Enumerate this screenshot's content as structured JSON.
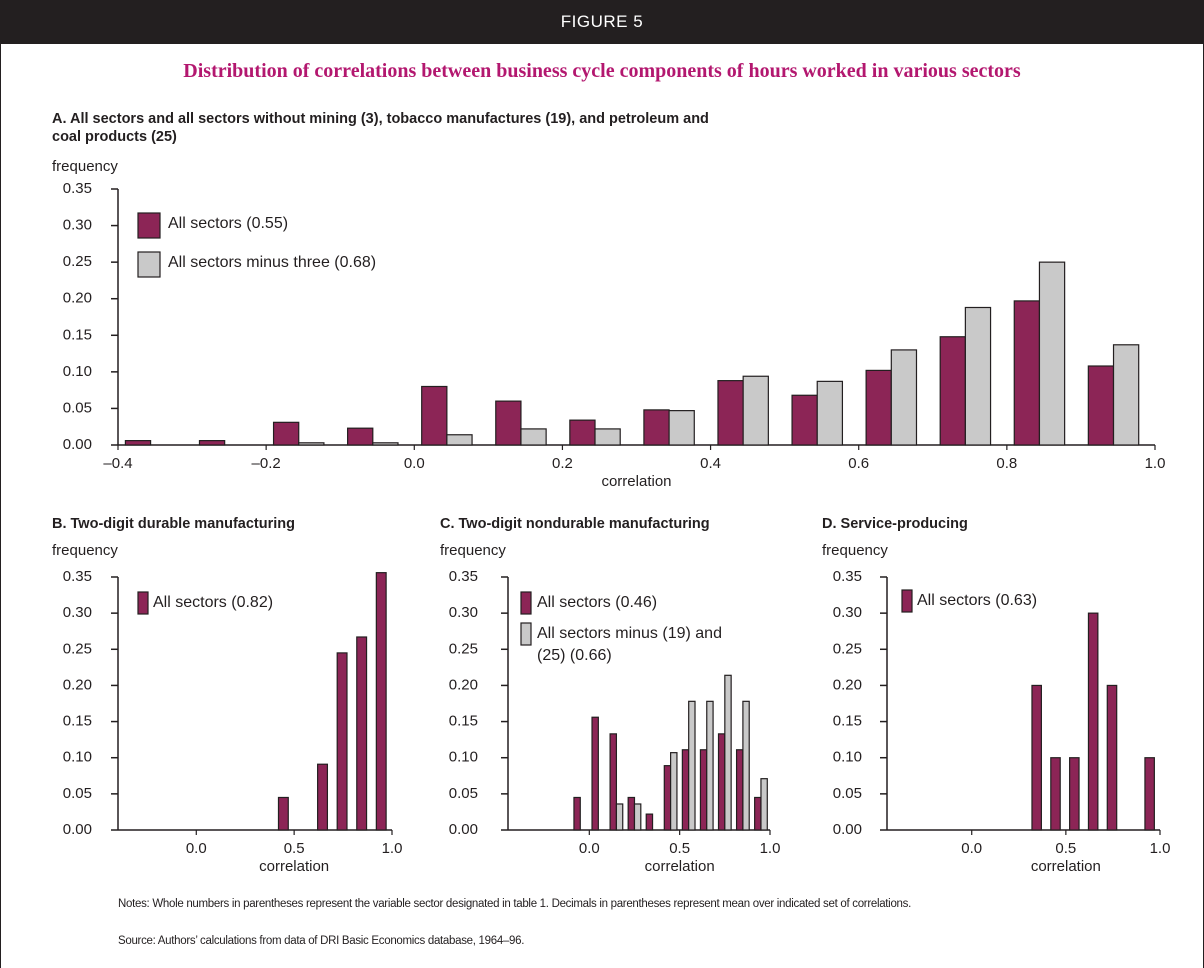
{
  "header": "FIGURE 5",
  "title": "Distribution of correlations between business cycle components of hours worked in various sectors",
  "chart_data": [
    {
      "type": "histogram",
      "title": "A. All sectors and all sectors without mining (3), tobacco manufactures (19), and petroleum and coal products (25)",
      "ylabel": "frequency",
      "xlabel": "correlation",
      "legend": "upper left",
      "bins": [
        -0.4,
        -0.3,
        -0.2,
        -0.1,
        0,
        0.1,
        0.2,
        0.3,
        0.4,
        0.5,
        0.6,
        0.7,
        0.8,
        0.9,
        1.0
      ],
      "series": [
        {
          "name": "All sectors (0.55)",
          "color": "#8c2556",
          "values": [
            0.006,
            0.006,
            0.031,
            0.023,
            0.08,
            0.06,
            0.034,
            0.048,
            0.088,
            0.068,
            0.102,
            0.148,
            0.197,
            0.108
          ]
        },
        {
          "name": "All sectors minus three (0.68)",
          "color": "#c9c9c9",
          "values": [
            0,
            0,
            0.003,
            0.003,
            0.014,
            0.022,
            0.022,
            0.047,
            0.094,
            0.087,
            0.13,
            0.188,
            0.25,
            0.137
          ]
        }
      ],
      "xlim": [
        -0.4,
        1.0
      ],
      "ylim": [
        0,
        0.35
      ],
      "xticks": [
        {
          "value": -0.4,
          "label": "–0.4"
        },
        {
          "value": -0.2,
          "label": "–0.2"
        },
        {
          "value": 0,
          "label": "0.0"
        },
        0.2,
        0.4,
        0.6,
        0.8,
        {
          "value": 1,
          "label": "1.0"
        }
      ],
      "yticks": [
        {
          "value": 0,
          "label": "0.00"
        },
        0.05,
        {
          "value": 0.1,
          "label": "0.10"
        },
        0.15,
        {
          "value": 0.2,
          "label": "0.20"
        },
        0.25,
        {
          "value": 0.3,
          "label": "0.30"
        },
        0.35
      ]
    },
    {
      "type": "histogram",
      "title": "B. Two-digit durable manufacturing",
      "ylabel": "frequency",
      "xlabel": "correlation",
      "legend": "upper left",
      "bins": [
        -0.4,
        -0.3,
        -0.2,
        -0.1,
        0,
        0.1,
        0.2,
        0.3,
        0.4,
        0.5,
        0.6,
        0.7,
        0.8,
        0.9,
        1.0
      ],
      "series": [
        {
          "name": "All sectors (0.82)",
          "color": "#8c2556",
          "values": [
            0,
            0,
            0,
            0,
            0,
            0,
            0,
            0,
            0.045,
            0,
            0.091,
            0.245,
            0.267,
            0.356
          ]
        }
      ],
      "xlim": [
        -0.4,
        1.0
      ],
      "ylim": [
        0,
        0.35
      ],
      "xticks": [
        {
          "value": 0,
          "label": "0.0"
        },
        0.5,
        {
          "value": 1,
          "label": "1.0"
        }
      ],
      "yticks": [
        {
          "value": 0,
          "label": "0.00"
        },
        0.05,
        {
          "value": 0.1,
          "label": "0.10"
        },
        0.15,
        {
          "value": 0.2,
          "label": "0.20"
        },
        0.25,
        {
          "value": 0.3,
          "label": "0.30"
        },
        0.35
      ]
    },
    {
      "type": "histogram",
      "title": "C. Two-digit nondurable manufacturing",
      "ylabel": "frequency",
      "xlabel": "correlation",
      "legend": "upper left",
      "bins": [
        -0.4,
        -0.3,
        -0.2,
        -0.1,
        0,
        0.1,
        0.2,
        0.3,
        0.4,
        0.5,
        0.6,
        0.7,
        0.8,
        0.9,
        1.0
      ],
      "series": [
        {
          "name": "All sectors (0.46)",
          "color": "#8c2556",
          "values": [
            0,
            0,
            0,
            0.045,
            0.156,
            0.133,
            0.045,
            0.022,
            0.089,
            0.111,
            0.111,
            0.133,
            0.111,
            0.045
          ]
        },
        {
          "name": "All sectors minus (19) and (25) (0.66)",
          "color": "#c9c9c9",
          "values": [
            0,
            0,
            0,
            0,
            0,
            0.036,
            0.036,
            0,
            0.107,
            0.178,
            0.178,
            0.214,
            0.178,
            0.071
          ]
        }
      ],
      "xlim": [
        -0.45,
        1.0
      ],
      "ylim": [
        0,
        0.35
      ],
      "xticks": [
        {
          "value": 0,
          "label": "0.0"
        },
        0.5,
        {
          "value": 1,
          "label": "1.0"
        }
      ],
      "yticks": [
        {
          "value": 0,
          "label": "0.00"
        },
        0.05,
        {
          "value": 0.1,
          "label": "0.10"
        },
        0.15,
        {
          "value": 0.2,
          "label": "0.20"
        },
        0.25,
        {
          "value": 0.3,
          "label": "0.30"
        },
        0.35
      ]
    },
    {
      "type": "histogram",
      "title": "D. Service-producing",
      "ylabel": "frequency",
      "xlabel": "correlation",
      "legend": "upper left",
      "bins": [
        -0.4,
        -0.3,
        -0.2,
        -0.1,
        0,
        0.1,
        0.2,
        0.3,
        0.4,
        0.5,
        0.6,
        0.7,
        0.8,
        0.9,
        1.0
      ],
      "series": [
        {
          "name": "All sectors (0.63)",
          "color": "#8c2556",
          "values": [
            0,
            0,
            0,
            0,
            0,
            0,
            0,
            0.2,
            0.1,
            0.1,
            0.3,
            0.2,
            0,
            0.1
          ]
        }
      ],
      "xlim": [
        -0.45,
        1.0
      ],
      "ylim": [
        0,
        0.35
      ],
      "xticks": [
        {
          "value": 0,
          "label": "0.0"
        },
        0.5,
        {
          "value": 1,
          "label": "1.0"
        }
      ],
      "yticks": [
        {
          "value": 0,
          "label": "0.00"
        },
        0.05,
        {
          "value": 0.1,
          "label": "0.10"
        },
        0.15,
        {
          "value": 0.2,
          "label": "0.20"
        },
        0.25,
        {
          "value": 0.3,
          "label": "0.30"
        },
        0.35
      ]
    }
  ],
  "notes": "Notes: Whole numbers in parentheses represent the variable sector designated in table 1. Decimals in parentheses represent mean over indicated set of correlations.",
  "source": "Source: Authors’ calculations from data of DRI Basic Economics database, 1964–96."
}
